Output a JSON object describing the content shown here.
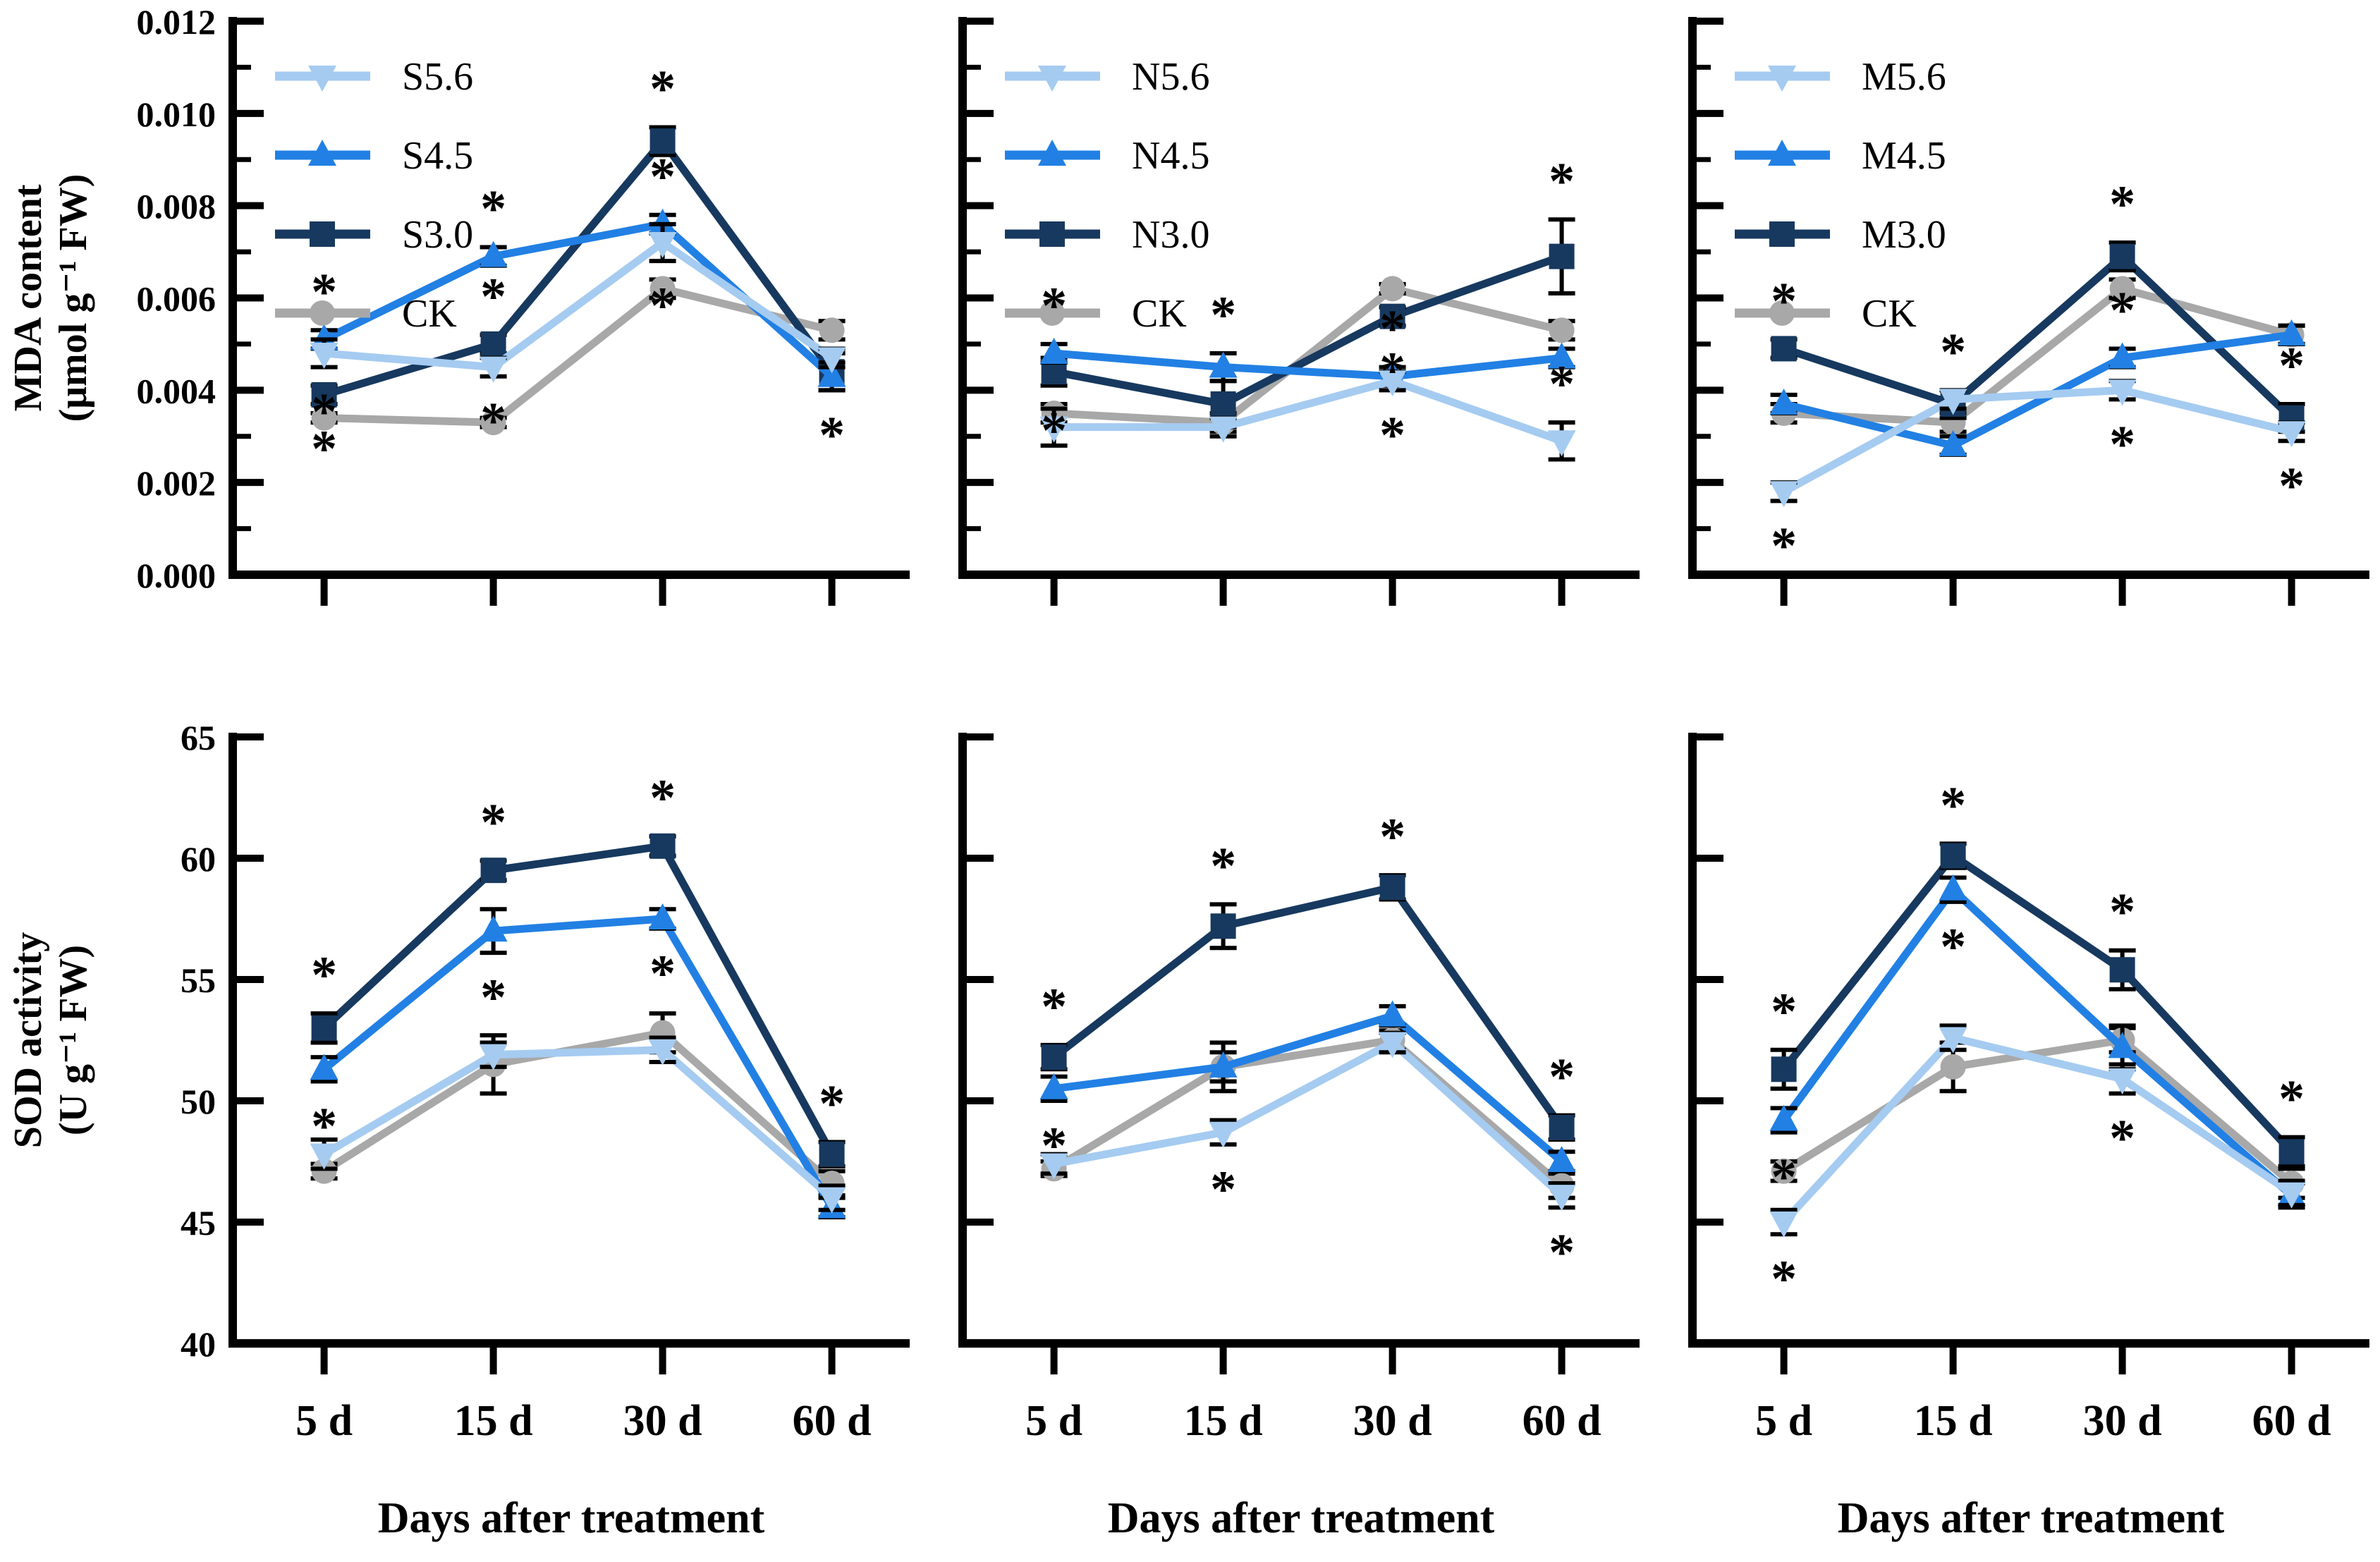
{
  "figure": {
    "background": "#FFFFFF",
    "xlabel": "Days after treatment",
    "categories": [
      "5 d",
      "15 d",
      "30 d",
      "60 d"
    ],
    "colors": {
      "level_5_6": "#A5CBF1",
      "level_4_5": "#2280E4",
      "level_3_0": "#17395F",
      "ck": "#A8A8A8",
      "axis": "#000000"
    },
    "rows": [
      {
        "ylabel": "MDA content (μmol g⁻¹ FW)",
        "ylim": [
          0,
          0.012
        ],
        "tick_step": 0.002
      },
      {
        "ylabel": "SOD activity (U g⁻¹ FW)",
        "ylim": [
          40,
          65
        ],
        "tick_step": 5
      }
    ],
    "legend_position": "top-left-inside",
    "grid": "off",
    "significance_symbol": "*"
  },
  "chart_data": [
    {
      "id": "mda-s",
      "type": "line",
      "row": 0,
      "col": 0,
      "ylabel_lines": [
        "MDA content",
        "(μmol g⁻¹ FW)"
      ],
      "ylim": [
        0,
        0.012
      ],
      "yticks": [
        0.0,
        0.002,
        0.004,
        0.006,
        0.008,
        0.01,
        0.012
      ],
      "ytick_labels": [
        "0.000",
        "0.002",
        "0.004",
        "0.006",
        "0.008",
        "0.010",
        "0.012"
      ],
      "yminorticks": [
        0.001,
        0.003,
        0.005,
        0.007,
        0.009,
        0.011
      ],
      "show_ytick_labels": true,
      "show_xtick_labels": false,
      "xlabel": "",
      "categories": [
        "5 d",
        "15 d",
        "30 d",
        "60 d"
      ],
      "legend": {
        "show": true
      },
      "series": [
        {
          "name": "S5.6",
          "color": "#A5CBF1",
          "marker": "triangle-down",
          "values": [
            0.0048,
            0.0045,
            0.0072,
            0.0047
          ],
          "errors": [
            0.0003,
            0.0002,
            0.0004,
            0.0002
          ]
        },
        {
          "name": "S4.5",
          "color": "#2280E4",
          "marker": "triangle-up",
          "values": [
            0.0051,
            0.0069,
            0.0076,
            0.0043
          ],
          "errors": [
            0.0002,
            0.0002,
            0.0002,
            0.0003
          ]
        },
        {
          "name": "S3.0",
          "color": "#17395F",
          "marker": "square",
          "values": [
            0.0039,
            0.005,
            0.0094,
            0.0044
          ],
          "errors": [
            0.0002,
            0.0002,
            0.0003,
            0.0004
          ]
        },
        {
          "name": "CK",
          "color": "#A8A8A8",
          "marker": "circle",
          "values": [
            0.0034,
            0.0033,
            0.0062,
            0.0053
          ],
          "errors": [
            0.0001,
            0.0001,
            0.0002,
            0.0002
          ]
        }
      ],
      "stars": [
        {
          "cat": "5 d",
          "series": "S4.5",
          "side": "above"
        },
        {
          "cat": "5 d",
          "series": "S5.6",
          "side": "below"
        },
        {
          "cat": "5 d",
          "series": "S3.0",
          "side": "below"
        },
        {
          "cat": "15 d",
          "series": "S4.5",
          "side": "above"
        },
        {
          "cat": "15 d",
          "series": "S3.0",
          "side": "above"
        },
        {
          "cat": "15 d",
          "series": "S5.6",
          "side": "below"
        },
        {
          "cat": "30 d",
          "series": "S3.0",
          "side": "above"
        },
        {
          "cat": "30 d",
          "series": "S4.5",
          "side": "above"
        },
        {
          "cat": "30 d",
          "series": "S5.6",
          "side": "below"
        },
        {
          "cat": "60 d",
          "series": "S4.5",
          "side": "below"
        }
      ]
    },
    {
      "id": "mda-n",
      "type": "line",
      "row": 0,
      "col": 1,
      "ylim": [
        0,
        0.012
      ],
      "yticks": [
        0.0,
        0.002,
        0.004,
        0.006,
        0.008,
        0.01,
        0.012
      ],
      "ytick_labels": [
        "0.000",
        "0.002",
        "0.004",
        "0.006",
        "0.008",
        "0.010",
        "0.012"
      ],
      "yminorticks": [
        0.001,
        0.003,
        0.005,
        0.007,
        0.009,
        0.011
      ],
      "show_ytick_labels": false,
      "show_xtick_labels": false,
      "xlabel": "",
      "categories": [
        "5 d",
        "15 d",
        "30 d",
        "60 d"
      ],
      "legend": {
        "show": true
      },
      "series": [
        {
          "name": "N5.6",
          "color": "#A5CBF1",
          "marker": "triangle-down",
          "values": [
            0.0032,
            0.0032,
            0.0042,
            0.0029
          ],
          "errors": [
            0.0004,
            0.0002,
            0.0002,
            0.0004
          ]
        },
        {
          "name": "N4.5",
          "color": "#2280E4",
          "marker": "triangle-up",
          "values": [
            0.0048,
            0.0045,
            0.0043,
            0.0047
          ],
          "errors": [
            0.0002,
            0.0003,
            0.0002,
            0.0002
          ]
        },
        {
          "name": "N3.0",
          "color": "#17395F",
          "marker": "square",
          "values": [
            0.0044,
            0.0037,
            0.0056,
            0.0069
          ],
          "errors": [
            0.0003,
            0.0005,
            0.0002,
            0.0008
          ]
        },
        {
          "name": "CK",
          "color": "#A8A8A8",
          "marker": "circle",
          "values": [
            0.0035,
            0.0033,
            0.0062,
            0.0053
          ],
          "errors": [
            0.0002,
            0.0002,
            0.0001,
            0.0002
          ]
        }
      ],
      "stars": [
        {
          "cat": "5 d",
          "series": "N4.5",
          "side": "above"
        },
        {
          "cat": "5 d",
          "series": "N3.0",
          "side": "below"
        },
        {
          "cat": "15 d",
          "series": "N4.5",
          "side": "above"
        },
        {
          "cat": "30 d",
          "series": "N3.0",
          "side": "below"
        },
        {
          "cat": "30 d",
          "series": "N4.5",
          "side": "above"
        },
        {
          "cat": "30 d",
          "series": "N5.6",
          "side": "below"
        },
        {
          "cat": "60 d",
          "series": "N3.0",
          "side": "above"
        },
        {
          "cat": "60 d",
          "series": "N5.6",
          "side": "above"
        }
      ]
    },
    {
      "id": "mda-m",
      "type": "line",
      "row": 0,
      "col": 2,
      "ylim": [
        0,
        0.012
      ],
      "yticks": [
        0.0,
        0.002,
        0.004,
        0.006,
        0.008,
        0.01,
        0.012
      ],
      "ytick_labels": [
        "0.000",
        "0.002",
        "0.004",
        "0.006",
        "0.008",
        "0.010",
        "0.012"
      ],
      "yminorticks": [
        0.001,
        0.003,
        0.005,
        0.007,
        0.009,
        0.011
      ],
      "show_ytick_labels": false,
      "show_xtick_labels": false,
      "xlabel": "",
      "categories": [
        "5 d",
        "15 d",
        "30 d",
        "60 d"
      ],
      "legend": {
        "show": true
      },
      "series": [
        {
          "name": "M5.6",
          "color": "#A5CBF1",
          "marker": "triangle-down",
          "values": [
            0.0018,
            0.0038,
            0.004,
            0.0031
          ],
          "errors": [
            0.0002,
            0.0002,
            0.0002,
            0.0002
          ]
        },
        {
          "name": "M4.5",
          "color": "#2280E4",
          "marker": "triangle-up",
          "values": [
            0.0037,
            0.0028,
            0.0047,
            0.0052
          ],
          "errors": [
            0.0002,
            0.0002,
            0.0002,
            0.0002
          ]
        },
        {
          "name": "M3.0",
          "color": "#17395F",
          "marker": "square",
          "values": [
            0.0049,
            0.0037,
            0.0069,
            0.0034
          ],
          "errors": [
            0.0002,
            0.0003,
            0.0003,
            0.0003
          ]
        },
        {
          "name": "CK",
          "color": "#A8A8A8",
          "marker": "circle",
          "values": [
            0.0035,
            0.0033,
            0.0062,
            0.0052
          ],
          "errors": [
            0.0002,
            0.0002,
            0.0002,
            0.0002
          ]
        }
      ],
      "stars": [
        {
          "cat": "5 d",
          "series": "M3.0",
          "side": "above"
        },
        {
          "cat": "5 d",
          "series": "M5.6",
          "side": "below"
        },
        {
          "cat": "15 d",
          "series": "M4.5",
          "anchor": "M5.6",
          "side": "above"
        },
        {
          "cat": "30 d",
          "series": "M3.0",
          "side": "above"
        },
        {
          "cat": "30 d",
          "series": "M4.5",
          "side": "above"
        },
        {
          "cat": "30 d",
          "series": "M5.6",
          "side": "below"
        },
        {
          "cat": "60 d",
          "series": "M3.0",
          "side": "above"
        },
        {
          "cat": "60 d",
          "series": "M5.6",
          "side": "below"
        }
      ]
    },
    {
      "id": "sod-s",
      "type": "line",
      "row": 1,
      "col": 0,
      "ylabel_lines": [
        "SOD activity",
        "(U g⁻¹ FW)"
      ],
      "ylim": [
        40,
        65
      ],
      "yticks": [
        40,
        45,
        50,
        55,
        60,
        65
      ],
      "ytick_labels": [
        "40",
        "45",
        "50",
        "55",
        "60",
        "65"
      ],
      "show_ytick_labels": true,
      "show_xtick_labels": true,
      "xlabel": "Days after treatment",
      "categories": [
        "5 d",
        "15 d",
        "30 d",
        "60 d"
      ],
      "legend": {
        "show": false
      },
      "series": [
        {
          "name": "S5.6",
          "color": "#A5CBF1",
          "marker": "triangle-down",
          "values": [
            47.8,
            51.9,
            52.1,
            46.0
          ],
          "errors": [
            0.6,
            0.5,
            0.5,
            0.5
          ]
        },
        {
          "name": "S4.5",
          "color": "#2280E4",
          "marker": "triangle-up",
          "values": [
            51.3,
            57.0,
            57.5,
            45.6
          ],
          "errors": [
            0.5,
            0.9,
            0.4,
            0.4
          ]
        },
        {
          "name": "S3.0",
          "color": "#17395F",
          "marker": "square",
          "values": [
            53.0,
            59.5,
            60.5,
            47.8
          ],
          "errors": [
            0.6,
            0.4,
            0.4,
            0.5
          ]
        },
        {
          "name": "CK",
          "color": "#A8A8A8",
          "marker": "circle",
          "values": [
            47.1,
            51.5,
            52.8,
            46.6
          ],
          "errors": [
            0.3,
            1.2,
            0.8,
            0.5
          ]
        }
      ],
      "stars": [
        {
          "cat": "5 d",
          "series": "S3.0",
          "side": "above"
        },
        {
          "cat": "5 d",
          "series": "S4.5",
          "side": "below"
        },
        {
          "cat": "15 d",
          "series": "S3.0",
          "side": "above"
        },
        {
          "cat": "15 d",
          "series": "S4.5",
          "side": "below"
        },
        {
          "cat": "30 d",
          "series": "S3.0",
          "side": "above"
        },
        {
          "cat": "30 d",
          "series": "S4.5",
          "side": "below"
        },
        {
          "cat": "60 d",
          "series": "S3.0",
          "side": "above"
        }
      ]
    },
    {
      "id": "sod-n",
      "type": "line",
      "row": 1,
      "col": 1,
      "ylim": [
        40,
        65
      ],
      "yticks": [
        40,
        45,
        50,
        55,
        60,
        65
      ],
      "ytick_labels": [
        "40",
        "45",
        "50",
        "55",
        "60",
        "65"
      ],
      "show_ytick_labels": false,
      "show_xtick_labels": true,
      "xlabel": "Days after treatment",
      "categories": [
        "5 d",
        "15 d",
        "30 d",
        "60 d"
      ],
      "legend": {
        "show": false
      },
      "series": [
        {
          "name": "N5.6",
          "color": "#A5CBF1",
          "marker": "triangle-down",
          "values": [
            47.4,
            48.7,
            52.4,
            46.1
          ],
          "errors": [
            0.4,
            0.5,
            0.4,
            0.5
          ]
        },
        {
          "name": "N4.5",
          "color": "#2280E4",
          "marker": "triangle-up",
          "values": [
            50.5,
            51.4,
            53.5,
            47.5
          ],
          "errors": [
            0.5,
            0.6,
            0.4,
            0.4
          ]
        },
        {
          "name": "N3.0",
          "color": "#17395F",
          "marker": "square",
          "values": [
            51.8,
            57.2,
            58.8,
            48.9
          ],
          "errors": [
            0.5,
            0.9,
            0.5,
            0.5
          ]
        },
        {
          "name": "CK",
          "color": "#A8A8A8",
          "marker": "circle",
          "values": [
            47.2,
            51.4,
            52.5,
            46.5
          ],
          "errors": [
            0.3,
            1.0,
            0.4,
            0.5
          ]
        }
      ],
      "stars": [
        {
          "cat": "5 d",
          "series": "N3.0",
          "side": "above"
        },
        {
          "cat": "5 d",
          "series": "N4.5",
          "side": "below"
        },
        {
          "cat": "15 d",
          "series": "N3.0",
          "side": "above"
        },
        {
          "cat": "15 d",
          "series": "N5.6",
          "side": "below"
        },
        {
          "cat": "30 d",
          "series": "N3.0",
          "side": "above"
        },
        {
          "cat": "60 d",
          "series": "N3.0",
          "side": "above"
        },
        {
          "cat": "60 d",
          "series": "N5.6",
          "side": "below"
        }
      ]
    },
    {
      "id": "sod-m",
      "type": "line",
      "row": 1,
      "col": 2,
      "ylim": [
        40,
        65
      ],
      "yticks": [
        40,
        45,
        50,
        55,
        60,
        65
      ],
      "ytick_labels": [
        "40",
        "45",
        "50",
        "55",
        "60",
        "65"
      ],
      "show_ytick_labels": false,
      "show_xtick_labels": true,
      "xlabel": "Days after treatment",
      "categories": [
        "5 d",
        "15 d",
        "30 d",
        "60 d"
      ],
      "legend": {
        "show": false
      },
      "series": [
        {
          "name": "M5.6",
          "color": "#A5CBF1",
          "marker": "triangle-down",
          "values": [
            45.0,
            52.6,
            50.9,
            46.2
          ],
          "errors": [
            0.5,
            0.5,
            0.6,
            0.5
          ]
        },
        {
          "name": "M4.5",
          "color": "#2280E4",
          "marker": "triangle-up",
          "values": [
            49.2,
            58.7,
            52.2,
            46.1
          ],
          "errors": [
            0.5,
            0.5,
            0.9,
            0.5
          ]
        },
        {
          "name": "M3.0",
          "color": "#17395F",
          "marker": "square",
          "values": [
            51.3,
            60.1,
            55.4,
            47.9
          ],
          "errors": [
            0.8,
            0.5,
            0.8,
            0.6
          ]
        },
        {
          "name": "CK",
          "color": "#A8A8A8",
          "marker": "circle",
          "values": [
            47.1,
            51.4,
            52.5,
            46.6
          ],
          "errors": [
            0.4,
            1.0,
            0.5,
            0.6
          ]
        }
      ],
      "stars": [
        {
          "cat": "5 d",
          "series": "M3.0",
          "side": "above"
        },
        {
          "cat": "5 d",
          "series": "M4.5",
          "side": "below"
        },
        {
          "cat": "5 d",
          "series": "M5.6",
          "side": "below"
        },
        {
          "cat": "15 d",
          "series": "M3.0",
          "side": "above"
        },
        {
          "cat": "15 d",
          "series": "M4.5",
          "side": "below"
        },
        {
          "cat": "30 d",
          "series": "M3.0",
          "side": "above"
        },
        {
          "cat": "30 d",
          "series": "M5.6",
          "side": "below"
        },
        {
          "cat": "60 d",
          "series": "M3.0",
          "side": "above"
        }
      ]
    }
  ]
}
